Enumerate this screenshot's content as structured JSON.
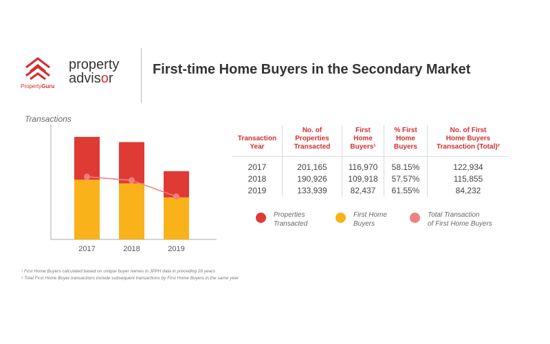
{
  "header": {
    "brand": {
      "name_prefix": "Property",
      "name_suffix": "Guru"
    },
    "advisor": {
      "line1": "property",
      "line2_prefix": "advis",
      "line2_o": "o",
      "line2_suffix": "r"
    },
    "title": "First-time Home Buyers in the Secondary Market"
  },
  "chart_data": {
    "type": "bar",
    "stacked": true,
    "ylabel": "Transactions",
    "categories": [
      "2017",
      "2018",
      "2019"
    ],
    "series": [
      {
        "name": "Properties Transacted",
        "type": "bar",
        "color": "#e03a34",
        "values": [
          201165,
          190926,
          133939
        ]
      },
      {
        "name": "First Home Buyers",
        "type": "bar",
        "color": "#f9b219",
        "values": [
          116970,
          109918,
          82437
        ]
      },
      {
        "name": "Total Transaction of First Home Buyers",
        "type": "line",
        "color": "#f08080",
        "values": [
          122934,
          115855,
          84232
        ]
      }
    ],
    "grid": false,
    "legend": "right"
  },
  "table": {
    "headers": [
      "Transaction\nYear",
      "No. of\nProperties\nTransacted",
      "First\nHome\nBuyers¹",
      "% First\nHome\nBuyers",
      "No. of First\nHome Buyers\nTransaction (Total)²"
    ],
    "rows": [
      [
        "2017",
        "201,165",
        "116,970",
        "58.15%",
        "122,934"
      ],
      [
        "2018",
        "190,926",
        "109,918",
        "57.57%",
        "115,855"
      ],
      [
        "2019",
        "133,939",
        "82,437",
        "61.55%",
        "84,232"
      ]
    ]
  },
  "legend": [
    {
      "label": "Properties\nTransacted",
      "color": "#e03a34"
    },
    {
      "label": "First Home\nBuyers",
      "color": "#f9b219"
    },
    {
      "label": "Total Transaction\nof First Home Buyers",
      "color": "#f08080"
    }
  ],
  "footnotes": [
    "¹ First Home Buyers calculated based on unique buyer names in JPPH data in preceding 20 years",
    "² Total First Home Buyer transactions include subsequent transactions by First Home Buyers in the same year"
  ]
}
